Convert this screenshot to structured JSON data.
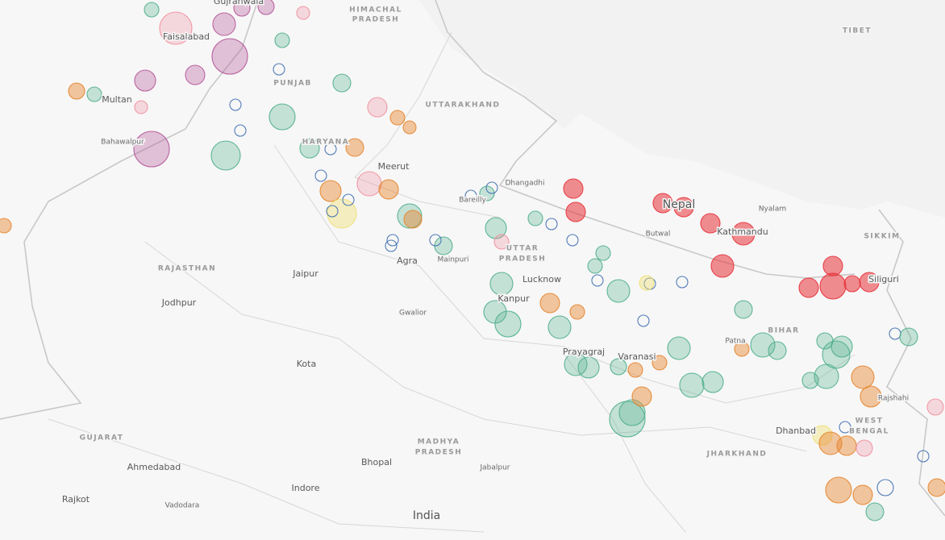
{
  "map": {
    "labels": [
      {
        "text": "Faisalabad",
        "kind": "city"
      },
      {
        "text": "Gujranwala",
        "kind": "city"
      },
      {
        "text": "HIMACHAL",
        "kind": "region"
      },
      {
        "text": "PRADESH",
        "kind": "region"
      },
      {
        "text": "TIBET",
        "kind": "region"
      },
      {
        "text": "Multan",
        "kind": "city"
      },
      {
        "text": "PUNJAB",
        "kind": "region"
      },
      {
        "text": "Bahawalpur",
        "kind": "small"
      },
      {
        "text": "HARYANA",
        "kind": "region"
      },
      {
        "text": "UTTARAKHAND",
        "kind": "region"
      },
      {
        "text": "Meerut",
        "kind": "city"
      },
      {
        "text": "Dhangadhi",
        "kind": "small"
      },
      {
        "text": "Bareilly",
        "kind": "small"
      },
      {
        "text": "Nepal",
        "kind": "country"
      },
      {
        "text": "Nyalam",
        "kind": "small"
      },
      {
        "text": "Kathmandu",
        "kind": "city"
      },
      {
        "text": "SIKKIM",
        "kind": "region"
      },
      {
        "text": "Butwal",
        "kind": "small"
      },
      {
        "text": "RAJASTHAN",
        "kind": "region"
      },
      {
        "text": "Jaipur",
        "kind": "city"
      },
      {
        "text": "Agra",
        "kind": "city"
      },
      {
        "text": "Mainpuri",
        "kind": "small"
      },
      {
        "text": "UTTAR",
        "kind": "region"
      },
      {
        "text": "PRADESH",
        "kind": "region"
      },
      {
        "text": "Lucknow",
        "kind": "city"
      },
      {
        "text": "Siliguri",
        "kind": "city"
      },
      {
        "text": "Jodhpur",
        "kind": "city"
      },
      {
        "text": "Gwalior",
        "kind": "small"
      },
      {
        "text": "Kanpur",
        "kind": "city"
      },
      {
        "text": "BIHAR",
        "kind": "region"
      },
      {
        "text": "Patna",
        "kind": "small"
      },
      {
        "text": "Prayagraj",
        "kind": "city"
      },
      {
        "text": "Varanasi",
        "kind": "city"
      },
      {
        "text": "Kota",
        "kind": "city"
      },
      {
        "text": "Rajshahi",
        "kind": "small"
      },
      {
        "text": "GUJARAT",
        "kind": "region"
      },
      {
        "text": "MADHYA",
        "kind": "region"
      },
      {
        "text": "PRADESH",
        "kind": "region"
      },
      {
        "text": "Dhanbad",
        "kind": "city"
      },
      {
        "text": "WEST",
        "kind": "region"
      },
      {
        "text": "BENGAL",
        "kind": "region"
      },
      {
        "text": "JHARKHAND",
        "kind": "region"
      },
      {
        "text": "Ahmedabad",
        "kind": "city"
      },
      {
        "text": "Bhopal",
        "kind": "city"
      },
      {
        "text": "Jabalpur",
        "kind": "small"
      },
      {
        "text": "Indore",
        "kind": "city"
      },
      {
        "text": "Rajkot",
        "kind": "city"
      },
      {
        "text": "Vadodara",
        "kind": "small"
      },
      {
        "text": "India",
        "kind": "country"
      }
    ]
  }
}
